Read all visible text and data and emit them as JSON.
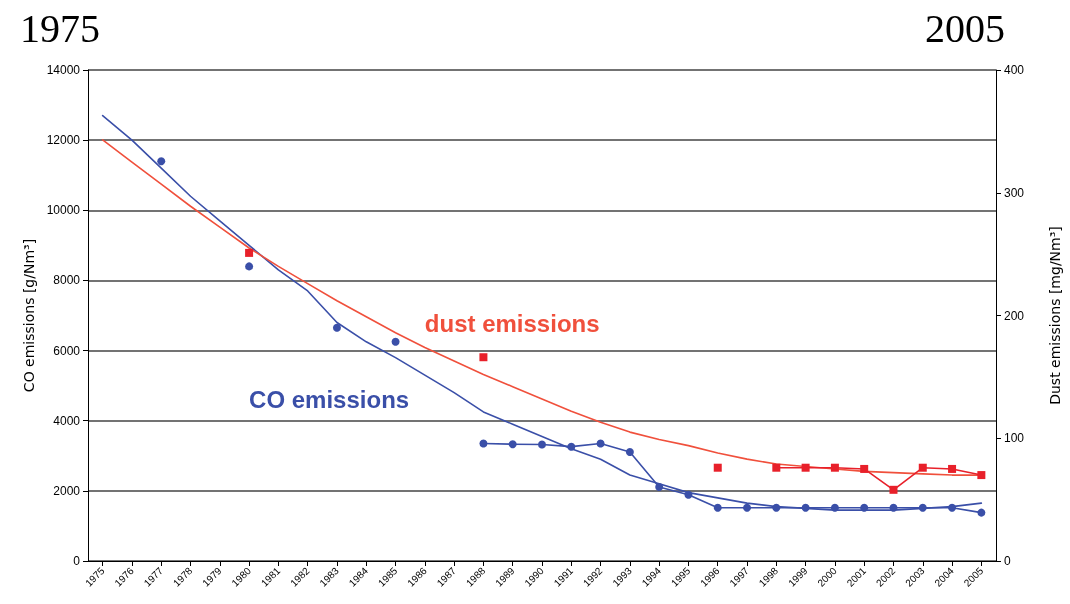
{
  "chart_data": {
    "type": "line",
    "ylabel": "CO emissions [g/Nm³]",
    "y2label": "Dust emissions [mg/Nm³]",
    "annotations": [
      "1975",
      "2005"
    ],
    "categories": [
      "1975",
      "1976",
      "1977",
      "1978",
      "1979",
      "1980",
      "1981",
      "1982",
      "1983",
      "1984",
      "1985",
      "1986",
      "1987",
      "1988",
      "1989",
      "1990",
      "1991",
      "1992",
      "1993",
      "1994",
      "1995",
      "1996",
      "1997",
      "1998",
      "1999",
      "2000",
      "2001",
      "2002",
      "2003",
      "2004",
      "2005"
    ],
    "ylim": [
      0,
      14000
    ],
    "yticks": [
      0,
      2000,
      4000,
      6000,
      8000,
      10000,
      12000,
      14000
    ],
    "y2lim": [
      0,
      400
    ],
    "y2ticks": [
      0,
      100,
      200,
      300,
      400
    ],
    "grid": "y",
    "legend": false,
    "series": [
      {
        "name": "CO emissions",
        "color": "#3a4fa8",
        "marker": "none",
        "values": [
          12700,
          12000,
          11200,
          10400,
          9700,
          9000,
          8300,
          7700,
          6800,
          6250,
          5800,
          5300,
          4800,
          4250,
          3900,
          3550,
          3200,
          2900,
          2450,
          2200,
          1950,
          1800,
          1650,
          1550,
          1500,
          1450,
          1450,
          1450,
          1500,
          1550,
          1650
        ]
      },
      {
        "color": "#3a4fa8",
        "marker": "circle",
        "values": [
          null,
          null,
          11400,
          null,
          null,
          8400,
          null,
          null,
          6650,
          null,
          6250,
          null,
          null,
          3350,
          3330,
          3320,
          3260,
          3350,
          3110,
          2110,
          1890,
          1520,
          1520,
          1520,
          1520,
          1520,
          1520,
          1520,
          1520,
          1520,
          1380
        ]
      },
      {
        "name": "dust emissions",
        "color": "#f0503c",
        "marker": "none",
        "axis": "y2",
        "values": [
          343,
          325,
          307,
          289,
          272,
          255,
          240,
          226,
          212,
          199,
          186,
          174,
          163,
          152,
          142,
          132,
          122,
          113,
          105,
          99,
          94,
          88,
          83,
          79,
          77,
          75,
          73,
          72,
          71,
          70,
          70
        ]
      },
      {
        "color": "#e8202a",
        "marker": "square",
        "axis": "y2",
        "values": [
          null,
          null,
          null,
          null,
          null,
          251,
          null,
          null,
          null,
          null,
          null,
          null,
          null,
          166,
          null,
          null,
          null,
          null,
          null,
          null,
          null,
          76,
          null,
          76,
          76,
          76,
          75,
          58,
          76,
          75,
          70
        ]
      }
    ]
  }
}
